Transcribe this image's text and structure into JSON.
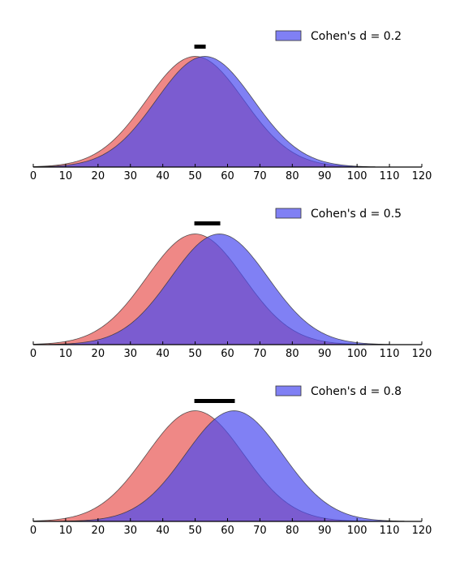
{
  "chart_data": [
    {
      "type": "area",
      "x_ticks": [
        0,
        10,
        20,
        30,
        40,
        50,
        60,
        70,
        80,
        90,
        100,
        110,
        120
      ],
      "xlim": [
        0,
        120
      ],
      "ylim": [
        0,
        1.07
      ],
      "grid": false,
      "legend_placement": "top-right",
      "distributions": [
        {
          "mean": 50,
          "sd": 15,
          "color": "#e8504d"
        },
        {
          "mean": 53,
          "sd": 15,
          "color": "#4a4af0"
        }
      ],
      "mean_difference_bar": [
        50,
        53
      ],
      "legend": {
        "label": "Cohen's d = 0.2",
        "color": "#4a4af0"
      }
    },
    {
      "type": "area",
      "x_ticks": [
        0,
        10,
        20,
        30,
        40,
        50,
        60,
        70,
        80,
        90,
        100,
        110,
        120
      ],
      "xlim": [
        0,
        120
      ],
      "ylim": [
        0,
        1.07
      ],
      "grid": false,
      "legend_placement": "top-right",
      "distributions": [
        {
          "mean": 50,
          "sd": 15,
          "color": "#e8504d"
        },
        {
          "mean": 57.5,
          "sd": 15,
          "color": "#4a4af0"
        }
      ],
      "mean_difference_bar": [
        50,
        57.5
      ],
      "legend": {
        "label": "Cohen's d = 0.5",
        "color": "#4a4af0"
      }
    },
    {
      "type": "area",
      "x_ticks": [
        0,
        10,
        20,
        30,
        40,
        50,
        60,
        70,
        80,
        90,
        100,
        110,
        120
      ],
      "xlim": [
        0,
        120
      ],
      "ylim": [
        0,
        1.07
      ],
      "grid": false,
      "legend_placement": "top-right",
      "distributions": [
        {
          "mean": 50,
          "sd": 15,
          "color": "#e8504d"
        },
        {
          "mean": 62,
          "sd": 15,
          "color": "#4a4af0"
        }
      ],
      "mean_difference_bar": [
        50,
        62
      ],
      "legend": {
        "label": "Cohen's d = 0.8",
        "color": "#4a4af0"
      }
    }
  ]
}
